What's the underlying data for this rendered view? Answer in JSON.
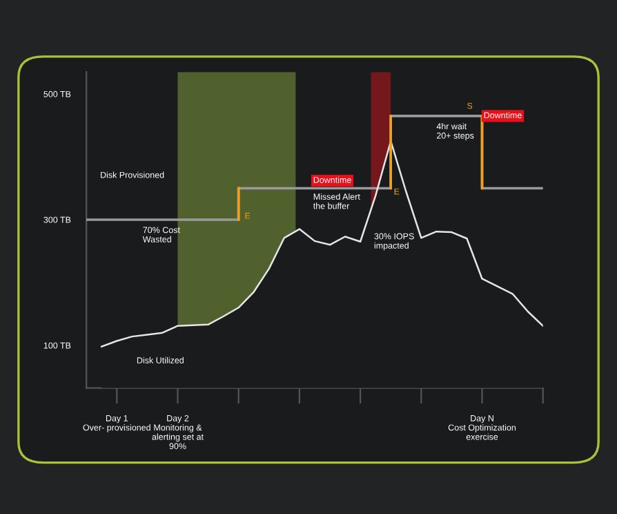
{
  "chart_data": {
    "type": "area",
    "categories": [
      null,
      null,
      "Day 1\nOver- provisioned",
      null,
      null,
      null,
      "Day 2\nMonitoring &\nalerting set at\n90%",
      null,
      null,
      null,
      null,
      null,
      null,
      null,
      null,
      null,
      null,
      null,
      null,
      null,
      null,
      null,
      null,
      null,
      null,
      null,
      "Day N\nCost Optimization\nexercise",
      null,
      null,
      null,
      null
    ],
    "ylim": [
      32,
      535
    ],
    "yticks": [
      {
        "value": 100,
        "label": "100 TB"
      },
      {
        "value": 300,
        "label": "300 TB"
      },
      {
        "value": 500,
        "label": "500 TB"
      }
    ],
    "grid": false,
    "series": [
      {
        "type": "step",
        "color": "#9a9a9a",
        "values": [
          300,
          300,
          300,
          300,
          300,
          300,
          300,
          300,
          300,
          300,
          350,
          350,
          350,
          350,
          350,
          350,
          350,
          350,
          350,
          350,
          465,
          465,
          465,
          465,
          465,
          465,
          350,
          350,
          350,
          350,
          350
        ]
      },
      {
        "color": "#e6e6e6",
        "values": [
          null,
          98,
          107,
          114,
          117,
          120,
          131,
          132,
          133,
          146,
          160,
          185,
          222,
          271,
          285,
          266,
          260,
          273,
          265,
          338,
          425,
          345,
          271,
          281,
          280,
          270,
          206,
          194,
          182,
          154,
          131
        ]
      }
    ],
    "annotations": [
      "Disk Provisioned",
      "70% Cost\nWasted",
      "Disk Utilized",
      "E",
      "Downtime",
      "Missed Alert\nthe buffer",
      {
        "text": "E",
        "y": 350
      },
      "30% IOPS\nimpacted",
      "S",
      "4hr wait\n20+ steps",
      {
        "text": "Downtime",
        "x": "Day N\nCost Optimization\nexercise",
        "y": 465
      }
    ]
  }
}
